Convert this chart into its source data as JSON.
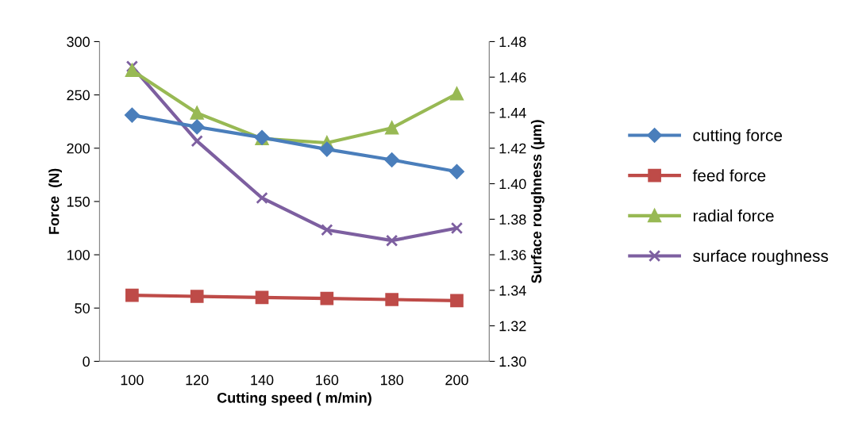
{
  "chart_data": {
    "type": "line",
    "xlabel": "Cutting speed ( m/min)",
    "ylabel": "Force  (N)",
    "y2label": "Surface roughness (µm)",
    "categories": [
      "100",
      "120",
      "140",
      "160",
      "180",
      "200"
    ],
    "series": [
      {
        "name": "cutting force",
        "color": "#4a7ebb",
        "marker": "diamond",
        "values": [
          231,
          220,
          210,
          199,
          189,
          178
        ]
      },
      {
        "name": "feed force",
        "color": "#be4b48",
        "marker": "square",
        "values": [
          62,
          61,
          60,
          59,
          58,
          57
        ]
      },
      {
        "name": "radial force",
        "color": "#98b954",
        "marker": "triangle",
        "values": [
          273,
          233,
          209,
          205,
          219,
          251
        ]
      },
      {
        "name": "surface roughness",
        "color": "#7d5fa0",
        "marker": "cross",
        "axis": "y2",
        "values": [
          1.466,
          1.424,
          1.392,
          1.374,
          1.368,
          1.375
        ]
      }
    ],
    "ylim": [
      0,
      300
    ],
    "yticks": [
      0,
      50,
      100,
      150,
      200,
      250,
      300
    ],
    "y2lim": [
      1.3,
      1.48
    ],
    "y2ticks": [
      {
        "value": 1.3,
        "label": "1.30"
      },
      {
        "value": 1.32,
        "label": "1.32"
      },
      {
        "value": 1.34,
        "label": "1.34"
      },
      {
        "value": 1.36,
        "label": "1.36"
      },
      {
        "value": 1.38,
        "label": "1.38"
      },
      {
        "value": 1.4,
        "label": "1.40"
      },
      {
        "value": 1.42,
        "label": "1.42"
      },
      {
        "value": 1.44,
        "label": "1.44"
      },
      {
        "value": 1.46,
        "label": "1.46"
      },
      {
        "value": 1.48,
        "label": "1.48"
      }
    ],
    "grid": false,
    "legend": "right"
  }
}
